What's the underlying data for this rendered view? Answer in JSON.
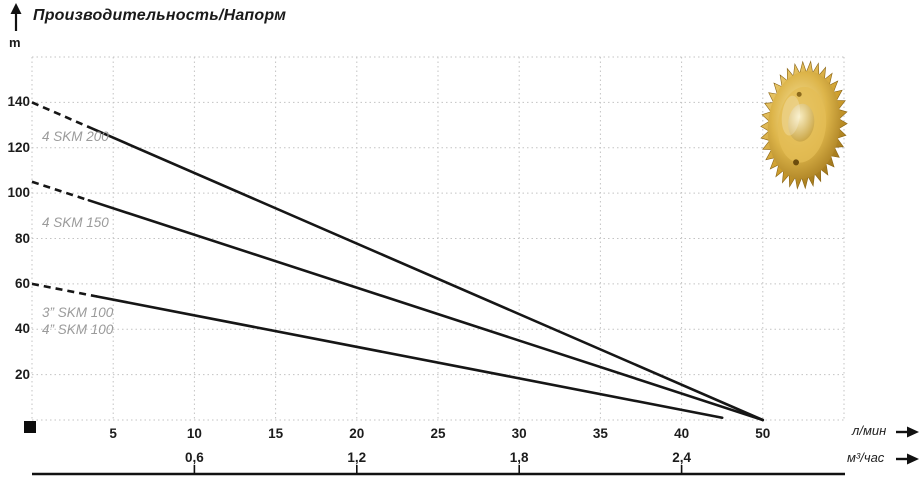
{
  "title": "Производительность/Напорм",
  "y_axis_unit_label": "m",
  "x_axis_unit_label": "л/мин",
  "x_axis_secondary_unit_label": "м³/час",
  "series_labels": {
    "skm200": "4 SKM 200",
    "skm150": "4 SKM 150",
    "skm100_line1": "3” SKM 100",
    "skm100_line2": "4” SKM 100"
  },
  "icons": {
    "y_axis_arrow": "arrow-up",
    "x_axis_arrow": "arrow-right",
    "x_axis_secondary_arrow": "arrow-right",
    "origin_marker": "black-square",
    "decoration": "gold-pump-impeller-photo"
  },
  "colors": {
    "curve": "#161616",
    "grid": "#c3c3c3",
    "series_label": "#9b9b9b",
    "text": "#1c1c1c",
    "gold_light": "#f6e4a2",
    "gold_mid": "#d4a843",
    "gold_dark": "#8a6414"
  },
  "chart_data": {
    "type": "line",
    "title": "Производительность/Напорм",
    "grid": "dotted",
    "y_axis": {
      "label": "m",
      "tick_labels": [
        "20",
        "40",
        "60",
        "80",
        "100",
        "120",
        "140"
      ],
      "tick_values": [
        20,
        40,
        60,
        80,
        100,
        120,
        140
      ],
      "range": [
        0,
        160
      ],
      "grid_step": 20
    },
    "x_axis": {
      "label": "л/мин",
      "tick_labels": [
        "5",
        "10",
        "15",
        "20",
        "25",
        "30",
        "35",
        "40",
        "50"
      ],
      "tick_values": [
        5,
        10,
        15,
        20,
        25,
        30,
        35,
        40,
        50
      ],
      "grid_step": 5,
      "note": "gridlines every 5 л/мин up to 40; final gridline labeled 50"
    },
    "x_axis_secondary": {
      "label": "м³/час",
      "tick_labels": [
        "0,6",
        "1,2",
        "1,8",
        "2,4"
      ],
      "tick_values": [
        0.6,
        1.2,
        1.8,
        2.4
      ],
      "aligned_with_lmin": [
        10,
        20,
        30,
        40
      ]
    },
    "series": [
      {
        "name": "4 SKM 200",
        "points_lmin_m": [
          [
            0,
            140
          ],
          [
            50,
            0
          ]
        ],
        "dashed_until_lmin": 3.5
      },
      {
        "name": "4 SKM 150",
        "points_lmin_m": [
          [
            0,
            105
          ],
          [
            50,
            0
          ]
        ],
        "dashed_until_lmin": 3.5
      },
      {
        "name": "3” SKM 100 / 4” SKM 100",
        "points_lmin_m": [
          [
            0,
            60
          ],
          [
            45,
            1
          ]
        ],
        "dashed_until_lmin": 4
      }
    ]
  }
}
